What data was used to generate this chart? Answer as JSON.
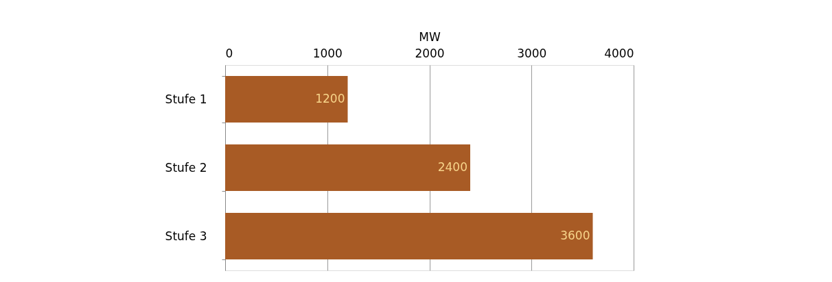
{
  "chart_data": {
    "type": "bar",
    "orientation": "horizontal",
    "xlabel": "MW",
    "categories": [
      "Stufe 1",
      "Stufe 2",
      "Stufe 3"
    ],
    "series": [
      {
        "color": "#a85b25",
        "values": [
          1200,
          2400,
          3600
        ]
      }
    ],
    "xlim": [
      0,
      4000
    ],
    "xticks": [
      0,
      1000,
      2000,
      3000,
      4000
    ],
    "grid": "x",
    "data_labels": true
  }
}
